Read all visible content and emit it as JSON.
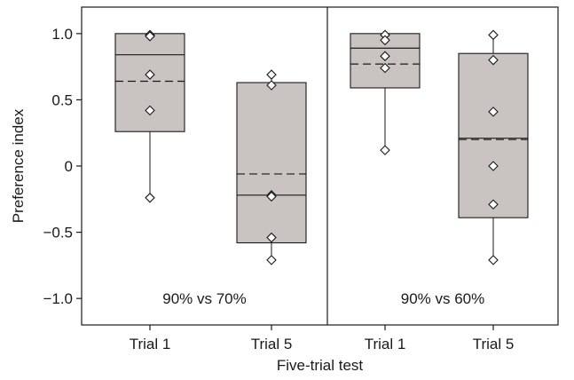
{
  "chart_data": {
    "type": "box",
    "ylabel": "Preference index",
    "xlabel": "Five-trial test",
    "ylim": [
      -1.2,
      1.2
    ],
    "yticks": [
      {
        "value": 1.0,
        "label": "1.0"
      },
      {
        "value": 0.5,
        "label": "0.5"
      },
      {
        "value": 0.0,
        "label": "0"
      },
      {
        "value": -0.5,
        "label": "−0.5"
      },
      {
        "value": -1.0,
        "label": "−1.0"
      }
    ],
    "grid": false,
    "box_fill": "#c9c4c1",
    "panels": [
      {
        "label": "90% vs 70%",
        "groups": [
          {
            "category": "Trial 1",
            "q1": 0.26,
            "median": 0.84,
            "mean": 0.64,
            "q3": 1.0,
            "whisker_low": -0.24,
            "whisker_high": 1.0,
            "points": [
              0.99,
              0.98,
              0.69,
              0.42,
              -0.24
            ]
          },
          {
            "category": "Trial 5",
            "q1": -0.58,
            "median": -0.22,
            "mean": -0.06,
            "q3": 0.63,
            "whisker_low": -0.71,
            "whisker_high": 0.69,
            "points": [
              0.69,
              0.61,
              -0.22,
              -0.23,
              -0.54,
              -0.71
            ]
          }
        ]
      },
      {
        "label": "90% vs 60%",
        "groups": [
          {
            "category": "Trial 1",
            "q1": 0.59,
            "median": 0.89,
            "mean": 0.77,
            "q3": 1.0,
            "whisker_low": 0.12,
            "whisker_high": 1.0,
            "points": [
              0.99,
              0.95,
              0.83,
              0.74,
              0.12
            ]
          },
          {
            "category": "Trial 5",
            "q1": -0.39,
            "median": 0.21,
            "mean": 0.2,
            "q3": 0.85,
            "whisker_low": -0.71,
            "whisker_high": 0.99,
            "points": [
              0.99,
              0.8,
              0.41,
              0.0,
              -0.29,
              -0.71
            ]
          }
        ]
      }
    ]
  }
}
